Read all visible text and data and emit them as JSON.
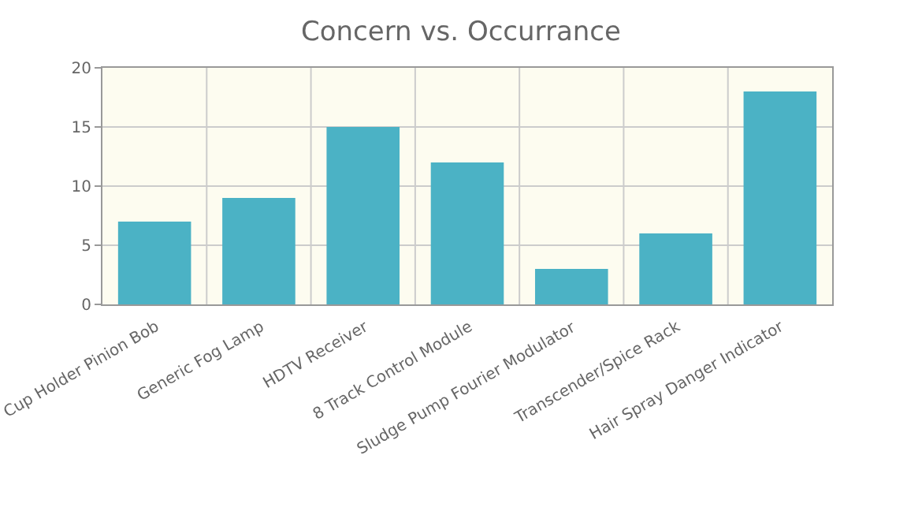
{
  "chart_data": {
    "type": "bar",
    "title": "Concern vs. Occurrance",
    "categories": [
      "Cup Holder Pinion Bob",
      "Generic Fog Lamp",
      "HDTV Receiver",
      "8 Track Control Module",
      "Sludge Pump Fourier Modulator",
      "Transcender/Spice Rack",
      "Hair Spray Danger Indicator"
    ],
    "values": [
      7,
      9,
      15,
      12,
      3,
      6,
      18
    ],
    "color": "#4bb2c5",
    "ylim": [
      0,
      20
    ],
    "yticks": [
      0,
      5,
      10,
      15,
      20
    ],
    "grid": true
  }
}
